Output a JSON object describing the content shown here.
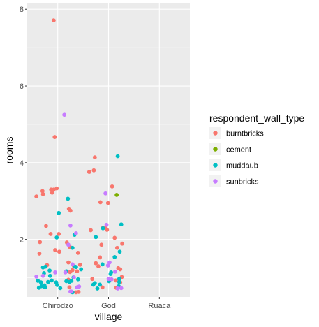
{
  "chart_data": {
    "type": "scatter",
    "xlabel": "village",
    "ylabel": "rooms",
    "categories": [
      "Chirodzo",
      "God",
      "Ruaca"
    ],
    "yticks": [
      2,
      4,
      6,
      8
    ],
    "ylim": [
      0.5,
      8.15
    ],
    "jitter": true,
    "grid": true,
    "legend": {
      "title": "respondent_wall_type",
      "position": "right",
      "entries": [
        {
          "label": "burntbricks",
          "color": "#F8766D"
        },
        {
          "label": "cement",
          "color": "#7CAE00"
        },
        {
          "label": "muddaub",
          "color": "#00BFC4"
        },
        {
          "label": "sunbricks",
          "color": "#C77CFF"
        }
      ]
    },
    "series": [
      {
        "key": "burntbricks",
        "x": [
          0.58,
          0.7,
          0.92,
          0.87,
          0.71,
          0.92,
          0.94,
          0.98,
          0.89,
          0.77,
          0.86,
          0.65,
          1.02,
          0.95,
          1.03,
          0.64,
          0.79,
          1.25,
          1.22,
          1.18,
          1.24,
          1.21,
          1.32,
          1.4,
          1.24,
          1.29,
          1.38,
          1.44,
          1.21,
          1.23,
          1.41,
          1.36,
          1.73,
          1.62,
          1.71,
          2.07,
          2.27,
          1.84,
          1.99,
          1.89,
          1.94,
          1.65,
          1.97,
          1.86,
          2.12,
          2.17,
          2.19,
          2.23,
          2.26,
          1.75,
          1.8,
          1.83,
          2.23,
          2.14,
          1.68,
          2.15,
          1.88
        ],
        "y": [
          3.12,
          3.26,
          3.3,
          3.3,
          3.18,
          7.71,
          4.67,
          3.33,
          3.22,
          2.35,
          2.14,
          1.93,
          2.14,
          1.72,
          1.68,
          1.63,
          1.33,
          2.75,
          2.8,
          1.92,
          1.8,
          1.4,
          1.3,
          1.65,
          1.15,
          1.2,
          1.17,
          1.34,
          0.95,
          0.75,
          0.63,
          0.62,
          4.14,
          3.76,
          3.8,
          3.38,
          1.89,
          2.97,
          2.95,
          2.3,
          2.3,
          2.24,
          2.25,
          1.86,
          2.04,
          1.78,
          1.25,
          1.22,
          1.02,
          1.38,
          1.3,
          1.53,
          0.88,
          0.93,
          0.97,
          0.74,
          0.75
        ]
      },
      {
        "key": "cement",
        "x": [
          2.16
        ],
        "y": [
          3.16
        ]
      },
      {
        "key": "muddaub",
        "x": [
          0.71,
          1.02,
          0.98,
          0.76,
          0.85,
          0.84,
          0.73,
          0.81,
          0.61,
          0.67,
          0.88,
          0.97,
          0.99,
          1.05,
          0.74,
          0.75,
          0.68,
          0.63,
          1.2,
          1.33,
          1.29,
          1.46,
          1.34,
          1.36,
          1.27,
          1.17,
          1.31,
          1.17,
          1.23,
          1.4,
          1.29,
          1.27,
          2.18,
          2.25,
          1.75,
          1.89,
          2.22,
          2.12,
          1.88,
          2.05,
          2.01,
          2.21,
          1.83,
          2.04,
          2.21,
          1.73,
          1.7,
          1.78,
          2.2
        ],
        "y": [
          1.27,
          2.69,
          2.05,
          1.29,
          1.05,
          1.19,
          1.12,
          0.89,
          0.92,
          0.88,
          0.93,
          0.88,
          0.81,
          0.73,
          0.8,
          0.75,
          0.78,
          0.74,
          3.06,
          2.12,
          1.78,
          1.22,
          1.29,
          1.28,
          0.92,
          1.17,
          1.01,
          0.91,
          0.89,
          0.96,
          0.62,
          0.63,
          4.17,
          2.39,
          2.06,
          2.29,
          1.68,
          1.54,
          1.35,
          1.14,
          0.91,
          0.97,
          0.82,
          1.1,
          0.89,
          0.86,
          0.82,
          0.72,
          0.78
        ]
      },
      {
        "key": "sunbricks",
        "x": [
          0.58,
          0.71,
          0.95,
          1.13,
          1.25,
          1.36,
          1.21,
          1.29,
          1.32,
          1.15,
          1.38,
          1.42,
          1.27,
          1.25,
          1.94,
          1.96,
          1.99,
          2.02,
          2.13,
          2.25,
          2.06,
          2.0,
          2.18
        ],
        "y": [
          1.03,
          1.05,
          1.14,
          5.25,
          2.36,
          2.16,
          1.86,
          1.35,
          1.01,
          1.14,
          0.75,
          0.77,
          0.64,
          0.64,
          3.2,
          2.38,
          1.32,
          1.4,
          1.16,
          0.73,
          0.96,
          0.97,
          0.72
        ]
      }
    ]
  }
}
